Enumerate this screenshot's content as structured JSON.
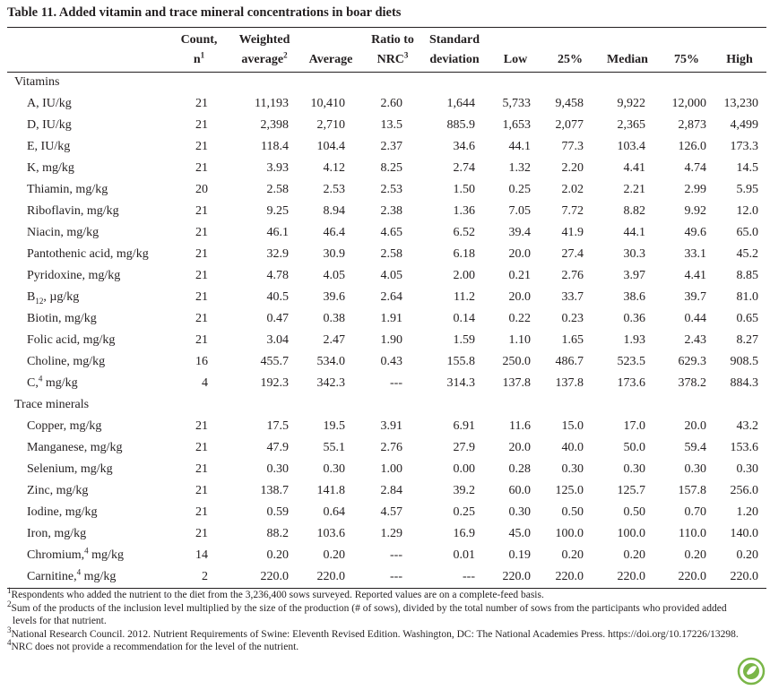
{
  "title": "Table 11. Added vitamin and trace mineral concentrations in boar diets",
  "header": [
    {
      "lines": [
        [
          "Count,"
        ],
        [
          "n",
          {
            "sup": "1"
          }
        ]
      ]
    },
    {
      "lines": [
        [
          "Weighted"
        ],
        [
          "average",
          {
            "sup": "2"
          }
        ]
      ]
    },
    {
      "lines": [
        [
          "Average"
        ]
      ]
    },
    {
      "lines": [
        [
          "Ratio to"
        ],
        [
          "NRC",
          {
            "sup": "3"
          }
        ]
      ]
    },
    {
      "lines": [
        [
          "Standard"
        ],
        [
          "deviation"
        ]
      ]
    },
    {
      "lines": [
        [
          "Low"
        ]
      ]
    },
    {
      "lines": [
        [
          "25%"
        ]
      ]
    },
    {
      "lines": [
        [
          "Median"
        ]
      ]
    },
    {
      "lines": [
        [
          "75%"
        ]
      ]
    },
    {
      "lines": [
        [
          "High"
        ]
      ]
    }
  ],
  "sections": [
    {
      "name": "Vitamins",
      "rows": [
        {
          "label": "A, IU/kg",
          "values": [
            "21",
            "11,193",
            "10,410",
            "2.60",
            "1,644",
            "5,733",
            "9,458",
            "9,922",
            "12,000",
            "13,230"
          ]
        },
        {
          "label": "D, IU/kg",
          "values": [
            "21",
            "2,398",
            "2,710",
            "13.5",
            "885.9",
            "1,653",
            "2,077",
            "2,365",
            "2,873",
            "4,499"
          ]
        },
        {
          "label": "E, IU/kg",
          "values": [
            "21",
            "118.4",
            "104.4",
            "2.37",
            "34.6",
            "44.1",
            "77.3",
            "103.4",
            "126.0",
            "173.3"
          ]
        },
        {
          "label": "K, mg/kg",
          "values": [
            "21",
            "3.93",
            "4.12",
            "8.25",
            "2.74",
            "1.32",
            "2.20",
            "4.41",
            "4.74",
            "14.5"
          ]
        },
        {
          "label": "Thiamin, mg/kg",
          "values": [
            "20",
            "2.58",
            "2.53",
            "2.53",
            "1.50",
            "0.25",
            "2.02",
            "2.21",
            "2.99",
            "5.95"
          ]
        },
        {
          "label": "Riboflavin, mg/kg",
          "values": [
            "21",
            "9.25",
            "8.94",
            "2.38",
            "1.36",
            "7.05",
            "7.72",
            "8.82",
            "9.92",
            "12.0"
          ]
        },
        {
          "label": "Niacin, mg/kg",
          "values": [
            "21",
            "46.1",
            "46.4",
            "4.65",
            "6.52",
            "39.4",
            "41.9",
            "44.1",
            "49.6",
            "65.0"
          ]
        },
        {
          "label": "Pantothenic acid, mg/kg",
          "values": [
            "21",
            "32.9",
            "30.9",
            "2.58",
            "6.18",
            "20.0",
            "27.4",
            "30.3",
            "33.1",
            "45.2"
          ]
        },
        {
          "label": "Pyridoxine, mg/kg",
          "values": [
            "21",
            "4.78",
            "4.05",
            "4.05",
            "2.00",
            "0.21",
            "2.76",
            "3.97",
            "4.41",
            "8.85"
          ]
        },
        {
          "label": [
            "B",
            {
              "sub": "12"
            },
            ", µg/kg"
          ],
          "values": [
            "21",
            "40.5",
            "39.6",
            "2.64",
            "11.2",
            "20.0",
            "33.7",
            "38.6",
            "39.7",
            "81.0"
          ]
        },
        {
          "label": "Biotin, mg/kg",
          "values": [
            "21",
            "0.47",
            "0.38",
            "1.91",
            "0.14",
            "0.22",
            "0.23",
            "0.36",
            "0.44",
            "0.65"
          ]
        },
        {
          "label": "Folic acid, mg/kg",
          "values": [
            "21",
            "3.04",
            "2.47",
            "1.90",
            "1.59",
            "1.10",
            "1.65",
            "1.93",
            "2.43",
            "8.27"
          ]
        },
        {
          "label": "Choline, mg/kg",
          "values": [
            "16",
            "455.7",
            "534.0",
            "0.43",
            "155.8",
            "250.0",
            "486.7",
            "523.5",
            "629.3",
            "908.5"
          ]
        },
        {
          "label": [
            "C,",
            {
              "sup": "4"
            },
            " mg/kg"
          ],
          "values": [
            "4",
            "192.3",
            "342.3",
            "---",
            "314.3",
            "137.8",
            "137.8",
            "173.6",
            "378.2",
            "884.3"
          ]
        }
      ]
    },
    {
      "name": "Trace minerals",
      "rows": [
        {
          "label": "Copper, mg/kg",
          "values": [
            "21",
            "17.5",
            "19.5",
            "3.91",
            "6.91",
            "11.6",
            "15.0",
            "17.0",
            "20.0",
            "43.2"
          ]
        },
        {
          "label": "Manganese, mg/kg",
          "values": [
            "21",
            "47.9",
            "55.1",
            "2.76",
            "27.9",
            "20.0",
            "40.0",
            "50.0",
            "59.4",
            "153.6"
          ]
        },
        {
          "label": "Selenium, mg/kg",
          "values": [
            "21",
            "0.30",
            "0.30",
            "1.00",
            "0.00",
            "0.28",
            "0.30",
            "0.30",
            "0.30",
            "0.30"
          ]
        },
        {
          "label": "Zinc, mg/kg",
          "values": [
            "21",
            "138.7",
            "141.8",
            "2.84",
            "39.2",
            "60.0",
            "125.0",
            "125.7",
            "157.8",
            "256.0"
          ]
        },
        {
          "label": "Iodine, mg/kg",
          "values": [
            "21",
            "0.59",
            "0.64",
            "4.57",
            "0.25",
            "0.30",
            "0.50",
            "0.50",
            "0.70",
            "1.20"
          ]
        },
        {
          "label": "Iron, mg/kg",
          "values": [
            "21",
            "88.2",
            "103.6",
            "1.29",
            "16.9",
            "45.0",
            "100.0",
            "100.0",
            "110.0",
            "140.0"
          ]
        },
        {
          "label": [
            "Chromium,",
            {
              "sup": "4"
            },
            " mg/kg"
          ],
          "values": [
            "14",
            "0.20",
            "0.20",
            "---",
            "0.01",
            "0.19",
            "0.20",
            "0.20",
            "0.20",
            "0.20"
          ]
        },
        {
          "label": [
            "Carnitine,",
            {
              "sup": "4"
            },
            " mg/kg"
          ],
          "values": [
            "2",
            "220.0",
            "220.0",
            "---",
            "---",
            "220.0",
            "220.0",
            "220.0",
            "220.0",
            "220.0"
          ]
        }
      ]
    }
  ],
  "footnotes": [
    {
      "sup": "1",
      "text": "Respondents who added the nutrient to the diet from the 3,236,400 sows surveyed. Reported values are on a complete-feed basis."
    },
    {
      "sup": "2",
      "text": "Sum of the products of the inclusion level multiplied by the size of the production (# of sows), divided by the total number of sows from the participants who provided added levels for that nutrient."
    },
    {
      "sup": "3",
      "text": "National Research Council. 2012. Nutrient Requirements of Swine: Eleventh Revised Edition. Washington, DC: The National Academies Press. https://doi.org/10.17226/13298."
    },
    {
      "sup": "4",
      "text": "NRC does not provide a recommendation for the level of the nutrient."
    }
  ]
}
